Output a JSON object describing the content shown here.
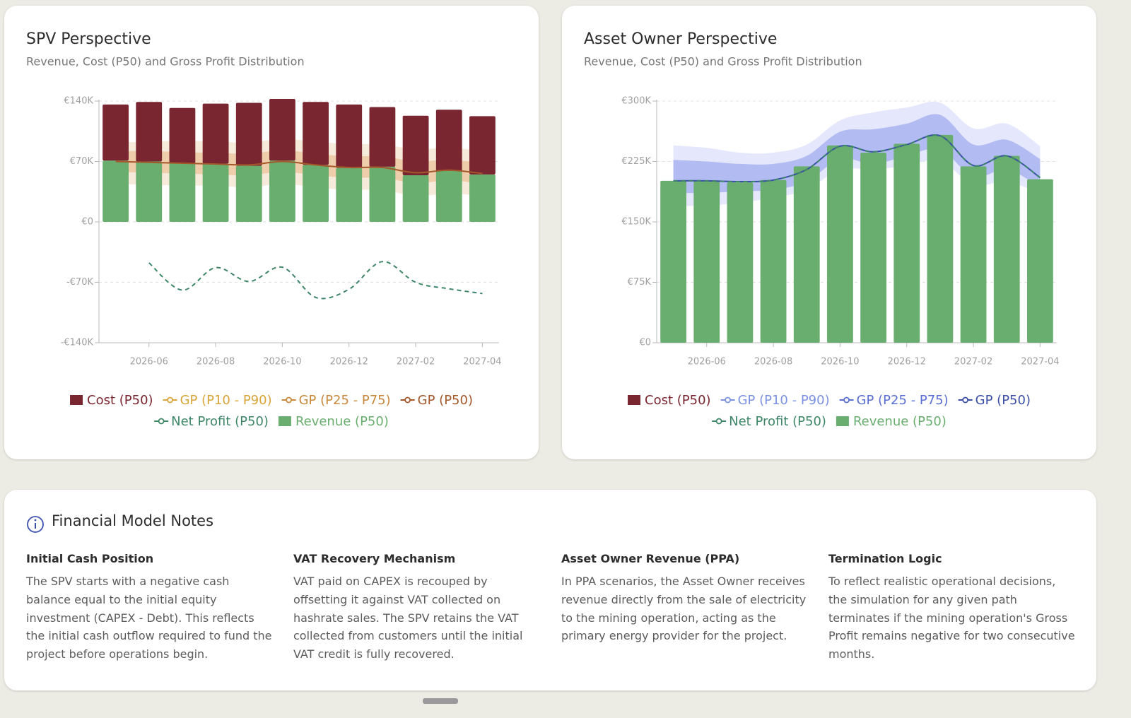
{
  "chart_data": [
    {
      "type": "bar",
      "title": "SPV Perspective",
      "subtitle": "Revenue, Cost (P50) and Gross Profit Distribution",
      "categories": [
        null,
        "2026-06",
        null,
        "2026-08",
        null,
        "2026-10",
        null,
        "2026-12",
        null,
        "2027-02",
        null,
        "2027-04"
      ],
      "ylim": [
        -140000,
        140000
      ],
      "yticks": [
        {
          "value": -140000,
          "label": "-€140K"
        },
        {
          "value": -70000,
          "label": "-€70K"
        },
        {
          "value": 0,
          "label": "€0"
        },
        {
          "value": 70000,
          "label": "€70K"
        },
        {
          "value": 140000,
          "label": "€140K"
        }
      ],
      "grid": true,
      "series": [
        {
          "name": "Cost (P50)",
          "kind": "bar",
          "color": "#7a2630",
          "values": [
            65000,
            69000,
            64000,
            69500,
            73000,
            71500,
            73000,
            73500,
            69000,
            69000,
            71000,
            67500
          ]
        },
        {
          "name": "GP (P10 - P90)",
          "kind": "band",
          "color": "#d9a53a",
          "fill": "#f5e6d3",
          "high": [
            92000,
            93000,
            94000,
            93000,
            92000,
            96000,
            93000,
            90000,
            90000,
            84000,
            86000,
            82000
          ],
          "low": [
            44000,
            43000,
            42000,
            42000,
            40000,
            44000,
            40000,
            37000,
            37000,
            30000,
            33000,
            30000
          ]
        },
        {
          "name": "GP (P25 - P75)",
          "kind": "band",
          "color": "#c9883a",
          "fill": "#ecc8a2",
          "high": [
            82000,
            82000,
            81000,
            80000,
            79000,
            83000,
            79000,
            76000,
            76000,
            70000,
            72000,
            68000
          ],
          "low": [
            58000,
            57000,
            56000,
            55000,
            54000,
            58000,
            54000,
            51000,
            51000,
            45000,
            48000,
            44000
          ]
        },
        {
          "name": "GP (P50)",
          "kind": "line",
          "color": "#a4582a",
          "values": [
            70000,
            69000,
            68000,
            67000,
            66000,
            70000,
            66000,
            63000,
            63000,
            57000,
            60000,
            56000
          ]
        },
        {
          "name": "Net Profit (P50)",
          "kind": "line",
          "dashed": true,
          "color": "#3d8668",
          "values": [
            null,
            -47500,
            -79000,
            -53000,
            -69000,
            -52500,
            -87500,
            -78000,
            -46000,
            -70000,
            -77500,
            -83000
          ]
        },
        {
          "name": "Revenue (P50)",
          "kind": "bar",
          "color": "#6aae6f",
          "values": [
            71000,
            70000,
            68000,
            67500,
            65000,
            71000,
            66000,
            62500,
            64000,
            54000,
            59000,
            55000
          ]
        }
      ]
    },
    {
      "type": "bar",
      "title": "Asset Owner Perspective",
      "subtitle": "Revenue, Cost (P50) and Gross Profit Distribution",
      "categories": [
        null,
        "2026-06",
        null,
        "2026-08",
        null,
        "2026-10",
        null,
        "2026-12",
        null,
        "2027-02",
        null,
        "2027-04"
      ],
      "ylim": [
        0,
        300000
      ],
      "yticks": [
        {
          "value": 0,
          "label": "€0"
        },
        {
          "value": 75000,
          "label": "€75K"
        },
        {
          "value": 150000,
          "label": "€150K"
        },
        {
          "value": 225000,
          "label": "€225K"
        },
        {
          "value": 300000,
          "label": "€300K"
        }
      ],
      "grid": true,
      "series": [
        {
          "name": "Cost (P50)",
          "kind": "bar",
          "color": "#7a2630",
          "values": [
            0,
            0,
            0,
            0,
            0,
            0,
            0,
            0,
            0,
            0,
            0,
            0
          ]
        },
        {
          "name": "GP (P10 - P90)",
          "kind": "band",
          "color": "#7b92e2",
          "fill": "#e0e4fb",
          "high": [
            245000,
            242000,
            236000,
            236000,
            246000,
            276000,
            286000,
            292000,
            298000,
            266000,
            272000,
            244000
          ],
          "low": [
            170000,
            170000,
            174000,
            180000,
            190000,
            215000,
            215000,
            220000,
            226000,
            196000,
            200000,
            185000
          ]
        },
        {
          "name": "GP (P25 - P75)",
          "kind": "band",
          "color": "#5a6fd2",
          "fill": "#aab4f0",
          "high": [
            227000,
            225000,
            222000,
            222000,
            232000,
            262000,
            265000,
            272000,
            283000,
            246000,
            252000,
            228000
          ],
          "low": [
            186000,
            186000,
            188000,
            190000,
            200000,
            228000,
            222000,
            232000,
            240000,
            206000,
            215000,
            193000
          ]
        },
        {
          "name": "GP (P50)",
          "kind": "line",
          "color": "#3b4fa8",
          "values": [
            201000,
            201000,
            200000,
            202000,
            215000,
            244000,
            237000,
            246000,
            257000,
            220000,
            232000,
            205000
          ]
        },
        {
          "name": "Net Profit (P50)",
          "kind": "line",
          "dashed": true,
          "color": "#3d8668",
          "values": [
            201000,
            201000,
            200000,
            202000,
            215000,
            244000,
            237000,
            246000,
            257000,
            220000,
            232000,
            205000
          ]
        },
        {
          "name": "Revenue (P50)",
          "kind": "bar",
          "color": "#6aae6f",
          "values": [
            201000,
            201000,
            199000,
            202000,
            219000,
            245000,
            236000,
            247000,
            258000,
            219000,
            232000,
            203000
          ]
        }
      ]
    }
  ],
  "notes": {
    "title": "Financial Model Notes",
    "items": [
      {
        "heading": "Initial Cash Position",
        "text": "The SPV starts with a negative cash balance equal to the initial equity investment (CAPEX - Debt). This reflects the initial cash outflow required to fund the project before operations begin."
      },
      {
        "heading": "VAT Recovery Mechanism",
        "text": "VAT paid on CAPEX is recouped by offsetting it against VAT collected on hashrate sales. The SPV retains the VAT collected from customers until the initial VAT credit is fully recovered."
      },
      {
        "heading": "Asset Owner Revenue (PPA)",
        "text": "In PPA scenarios, the Asset Owner receives revenue directly from the sale of electricity to the mining operation, acting as the primary energy provider for the project."
      },
      {
        "heading": "Termination Logic",
        "text": "To reflect realistic operational decisions, the simulation for any given path terminates if the mining operation's Gross Profit remains negative for two consecutive months."
      }
    ]
  }
}
